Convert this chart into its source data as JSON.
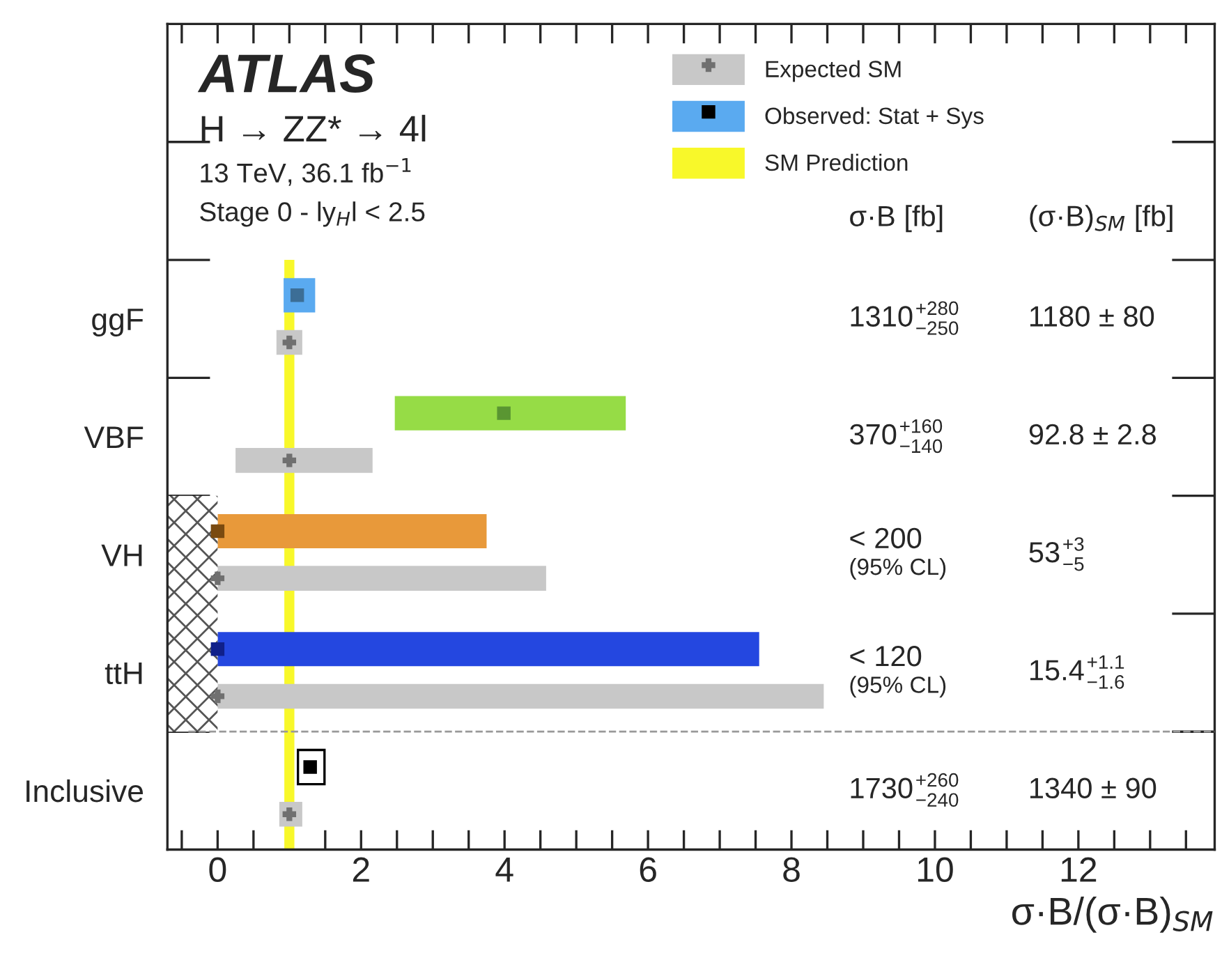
{
  "chart_data": {
    "type": "bar",
    "orientation": "horizontal",
    "categories": [
      "ggF",
      "VBF",
      "VH",
      "ttH",
      "Inclusive"
    ],
    "series": [
      {
        "name": "Observed: Stat + Sys",
        "type": "bar",
        "colors": [
          "#5aaaf0",
          "#96dc46",
          "#e8993a",
          "#2447e0",
          "#ffffff"
        ],
        "base": [
          0.92,
          2.47,
          0,
          0,
          1.12
        ],
        "values": [
          0.44,
          3.22,
          3.75,
          7.55,
          0.37
        ]
      },
      {
        "name": "Expected SM",
        "type": "bar",
        "color": "#c8c8c8",
        "base": [
          0.82,
          0.25,
          0,
          0,
          0.86
        ],
        "values": [
          0.36,
          1.91,
          4.58,
          8.45,
          0.32
        ]
      },
      {
        "type": "bar",
        "color": "#ffffff",
        "base": [
          null,
          null,
          -0.7,
          -0.7,
          null
        ],
        "values": [
          null,
          null,
          0.7,
          0.7,
          null
        ]
      },
      {
        "type": "scatter",
        "marker": "square",
        "colors": [
          "#3c6e96",
          "#5a9632",
          "#7a4a10",
          "#10208a",
          "#000000"
        ],
        "values": [
          1.11,
          3.99,
          0,
          0,
          1.29
        ]
      },
      {
        "type": "scatter",
        "marker": "cross",
        "color": "#707070",
        "values": [
          1,
          1,
          0,
          0,
          1
        ]
      }
    ],
    "bands": [
      {
        "axis": "x",
        "from": 0.93,
        "to": 1.07,
        "label": "SM Prediction",
        "color": "#f8f82a"
      }
    ],
    "xlabel": "σ·B/(σ·B)$_{SM}$",
    "xlim": [
      -0.7,
      13.9
    ],
    "xticks": [
      {
        "value": -0.5,
        "label": null
      },
      0,
      {
        "value": 0.5,
        "label": null
      },
      {
        "value": 1,
        "label": null
      },
      {
        "value": 1.5,
        "label": null
      },
      2,
      {
        "value": 2.5,
        "label": null
      },
      {
        "value": 3,
        "label": null
      },
      {
        "value": 3.5,
        "label": null
      },
      4,
      {
        "value": 4.5,
        "label": null
      },
      {
        "value": 5,
        "label": null
      },
      {
        "value": 5.5,
        "label": null
      },
      6,
      {
        "value": 6.5,
        "label": null
      },
      {
        "value": 7,
        "label": null
      },
      {
        "value": 7.5,
        "label": null
      },
      8,
      {
        "value": 8.5,
        "label": null
      },
      {
        "value": 9,
        "label": null
      },
      {
        "value": 9.5,
        "label": null
      },
      10,
      {
        "value": 10.5,
        "label": null
      },
      {
        "value": 11,
        "label": null
      },
      {
        "value": 11.5,
        "label": null
      },
      12,
      {
        "value": 12.5,
        "label": null
      },
      {
        "value": 13,
        "label": null
      },
      {
        "value": 13.5,
        "label": null
      }
    ],
    "legend": "top right",
    "annotations": [
      "ATLAS",
      "H → ZZ* → 4l",
      "13 TeV, 36.1 fb$^{−1}$",
      "Stage 0 - ly$_{H}$l < 2.5",
      "σ·B [fb]",
      "(σ·B)$_{SM}$ [fb]",
      "1310",
      "+280",
      "−250",
      "1180 ± 80",
      "370",
      "+160",
      "−140",
      "92.8 ± 2.8",
      "< 200",
      "(95% CL)",
      "53",
      "+3",
      "−5",
      "< 120",
      "(95% CL)",
      "15.4",
      "+1.1",
      "−1.6",
      "1730",
      "+260",
      "−240",
      "1340 ± 90"
    ]
  }
}
